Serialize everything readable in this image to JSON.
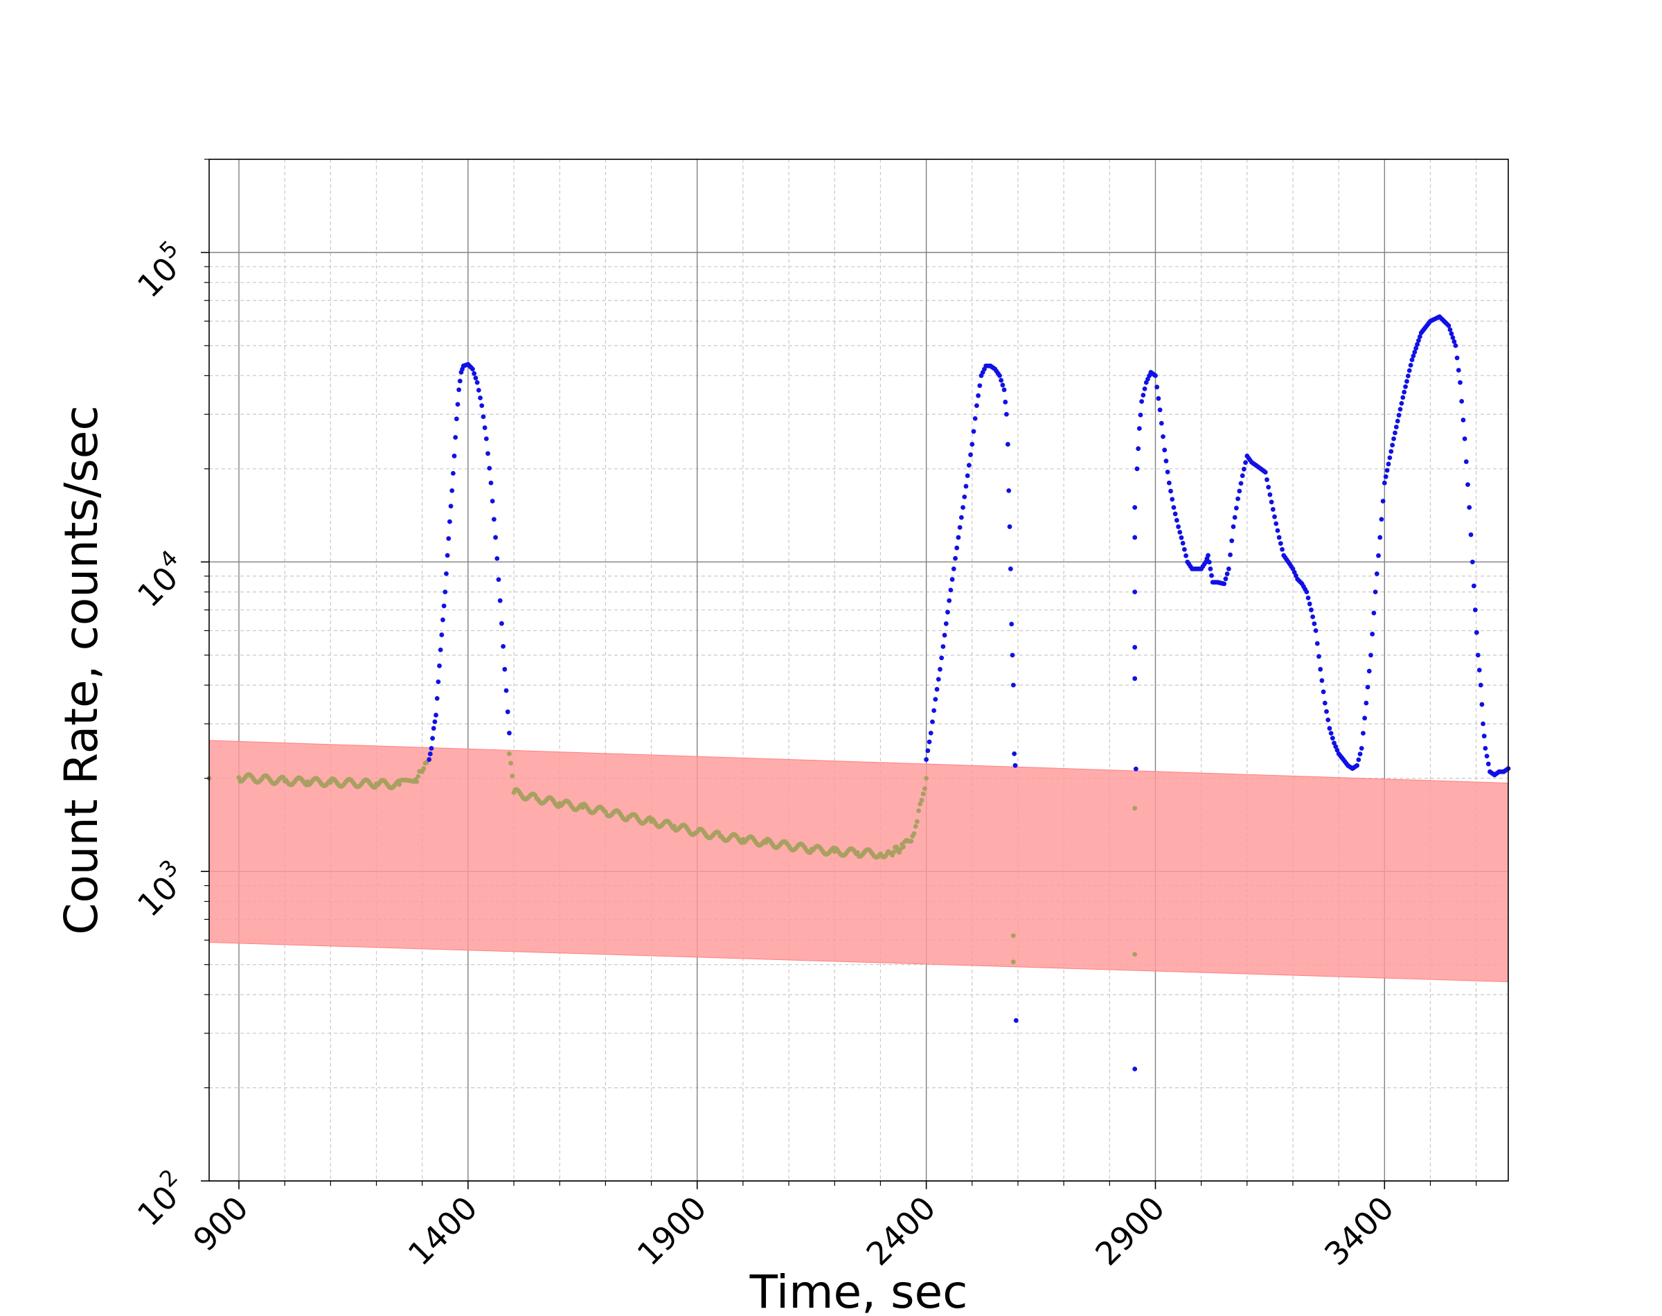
{
  "chart_data": {
    "type": "scatter",
    "title": "",
    "xlabel": "Time, sec",
    "ylabel": "Count Rate, counts/sec",
    "xlim": [
      835,
      3670
    ],
    "ylim": [
      100,
      200000
    ],
    "yscale": "log",
    "grid": true,
    "x_ticks": [
      900,
      1400,
      1900,
      2400,
      2900,
      3400
    ],
    "x_tick_labels": [
      "900",
      "1400",
      "1900",
      "2400",
      "2900",
      "3400"
    ],
    "y_ticks": [
      100,
      1000,
      10000,
      100000
    ],
    "y_tick_labels": [
      {
        "base": "10",
        "exp": "2"
      },
      {
        "base": "10",
        "exp": "3"
      },
      {
        "base": "10",
        "exp": "4"
      },
      {
        "base": "10",
        "exp": "5"
      }
    ],
    "band": {
      "color": "#ff9a9a",
      "x": [
        835,
        3670
      ],
      "upper": [
        2650,
        1930
      ],
      "lower": [
        590,
        440
      ]
    },
    "colors": {
      "above": "#1010e6",
      "below": "#a8a060",
      "band": "#ff9a9a"
    },
    "series": [
      {
        "color": "#a8a060",
        "points": [
          [
            835,
            2000
          ],
          [
            900,
            2010
          ],
          [
            950,
            1990
          ],
          [
            1000,
            1960
          ],
          [
            1050,
            1950
          ],
          [
            1100,
            1940
          ],
          [
            1150,
            1930
          ],
          [
            1200,
            1920
          ],
          [
            1250,
            1910
          ],
          [
            1285,
            1980
          ],
          [
            1300,
            2100
          ],
          [
            1310,
            2250
          ],
          [
            1490,
            2400
          ],
          [
            1500,
            1800
          ],
          [
            1550,
            1720
          ],
          [
            1600,
            1660
          ],
          [
            1650,
            1610
          ],
          [
            1700,
            1560
          ],
          [
            1750,
            1500
          ],
          [
            1800,
            1450
          ],
          [
            1850,
            1400
          ],
          [
            1900,
            1340
          ],
          [
            1950,
            1300
          ],
          [
            2000,
            1270
          ],
          [
            2050,
            1240
          ],
          [
            2100,
            1210
          ],
          [
            2150,
            1180
          ],
          [
            2200,
            1160
          ],
          [
            2250,
            1150
          ],
          [
            2300,
            1140
          ],
          [
            2320,
            1150
          ],
          [
            2350,
            1200
          ],
          [
            2370,
            1300
          ],
          [
            2380,
            1450
          ],
          [
            2390,
            1700
          ],
          [
            2400,
            2000
          ],
          [
            2590,
            620
          ],
          [
            2590,
            510
          ],
          [
            2855,
            1600
          ],
          [
            2855,
            540
          ]
        ]
      },
      {
        "color": "#1010e6",
        "points": [
          [
            1315,
            2300
          ],
          [
            1320,
            2500
          ],
          [
            1325,
            2900
          ],
          [
            1330,
            3200
          ],
          [
            1335,
            4100
          ],
          [
            1340,
            5200
          ],
          [
            1345,
            6500
          ],
          [
            1350,
            8000
          ],
          [
            1355,
            10500
          ],
          [
            1360,
            13500
          ],
          [
            1365,
            17000
          ],
          [
            1370,
            22000
          ],
          [
            1375,
            29000
          ],
          [
            1380,
            36000
          ],
          [
            1385,
            41000
          ],
          [
            1390,
            43000
          ],
          [
            1400,
            43500
          ],
          [
            1410,
            42000
          ],
          [
            1420,
            38000
          ],
          [
            1430,
            32000
          ],
          [
            1440,
            25000
          ],
          [
            1450,
            18000
          ],
          [
            1460,
            12000
          ],
          [
            1470,
            7500
          ],
          [
            1480,
            4500
          ],
          [
            1490,
            2800
          ],
          [
            2400,
            2300
          ],
          [
            2410,
            2800
          ],
          [
            2420,
            3600
          ],
          [
            2430,
            4500
          ],
          [
            2440,
            5800
          ],
          [
            2450,
            7500
          ],
          [
            2460,
            9500
          ],
          [
            2470,
            12000
          ],
          [
            2480,
            15000
          ],
          [
            2490,
            19000
          ],
          [
            2500,
            24000
          ],
          [
            2510,
            32000
          ],
          [
            2520,
            40000
          ],
          [
            2530,
            43000
          ],
          [
            2540,
            43000
          ],
          [
            2550,
            42000
          ],
          [
            2560,
            40000
          ],
          [
            2570,
            36000
          ],
          [
            2575,
            30000
          ],
          [
            2578,
            24000
          ],
          [
            2580,
            17000
          ],
          [
            2582,
            13000
          ],
          [
            2584,
            9500
          ],
          [
            2586,
            6300
          ],
          [
            2588,
            5000
          ],
          [
            2590,
            4000
          ],
          [
            2592,
            2400
          ],
          [
            2594,
            2200
          ],
          [
            2596,
            330
          ],
          [
            2855,
            5300
          ],
          [
            2855,
            4200
          ],
          [
            2855,
            8000
          ],
          [
            2855,
            12000
          ],
          [
            2855,
            15000
          ],
          [
            2855,
            230
          ],
          [
            2860,
            20000
          ],
          [
            2865,
            27000
          ],
          [
            2870,
            33000
          ],
          [
            2880,
            38000
          ],
          [
            2890,
            41000
          ],
          [
            2900,
            40000
          ],
          [
            2910,
            31000
          ],
          [
            2920,
            23000
          ],
          [
            2930,
            18000
          ],
          [
            2940,
            15000
          ],
          [
            2950,
            13000
          ],
          [
            2960,
            11500
          ],
          [
            2970,
            10000
          ],
          [
            2980,
            9500
          ],
          [
            2990,
            9500
          ],
          [
            3000,
            9500
          ],
          [
            3010,
            10000
          ],
          [
            3015,
            10500
          ],
          [
            3020,
            9500
          ],
          [
            3025,
            8600
          ],
          [
            3035,
            8600
          ],
          [
            3050,
            8500
          ],
          [
            3060,
            9500
          ],
          [
            3070,
            13000
          ],
          [
            3080,
            16000
          ],
          [
            3090,
            19000
          ],
          [
            3100,
            22000
          ],
          [
            3110,
            21000
          ],
          [
            3120,
            20500
          ],
          [
            3130,
            20000
          ],
          [
            3140,
            19500
          ],
          [
            3150,
            16500
          ],
          [
            3160,
            14000
          ],
          [
            3170,
            12000
          ],
          [
            3180,
            10500
          ],
          [
            3190,
            10000
          ],
          [
            3200,
            9500
          ],
          [
            3210,
            8800
          ],
          [
            3220,
            8500
          ],
          [
            3230,
            8000
          ],
          [
            3240,
            7000
          ],
          [
            3250,
            6000
          ],
          [
            3260,
            4500
          ],
          [
            3270,
            3500
          ],
          [
            3280,
            2900
          ],
          [
            3290,
            2600
          ],
          [
            3300,
            2400
          ],
          [
            3310,
            2300
          ],
          [
            3320,
            2200
          ],
          [
            3330,
            2150
          ],
          [
            3340,
            2200
          ],
          [
            3350,
            2500
          ],
          [
            3360,
            3500
          ],
          [
            3370,
            5000
          ],
          [
            3380,
            8000
          ],
          [
            3390,
            12000
          ],
          [
            3400,
            18000
          ],
          [
            3420,
            25000
          ],
          [
            3440,
            34000
          ],
          [
            3460,
            45000
          ],
          [
            3480,
            55000
          ],
          [
            3500,
            60000
          ],
          [
            3520,
            62000
          ],
          [
            3540,
            58000
          ],
          [
            3555,
            50000
          ],
          [
            3565,
            38000
          ],
          [
            3575,
            25000
          ],
          [
            3585,
            15000
          ],
          [
            3592,
            10000
          ],
          [
            3598,
            7000
          ],
          [
            3604,
            5000
          ],
          [
            3610,
            4000
          ],
          [
            3615,
            3000
          ],
          [
            3620,
            2500
          ],
          [
            3630,
            2100
          ],
          [
            3640,
            2050
          ],
          [
            3650,
            2100
          ],
          [
            3660,
            2100
          ],
          [
            3670,
            2150
          ]
        ]
      }
    ]
  }
}
